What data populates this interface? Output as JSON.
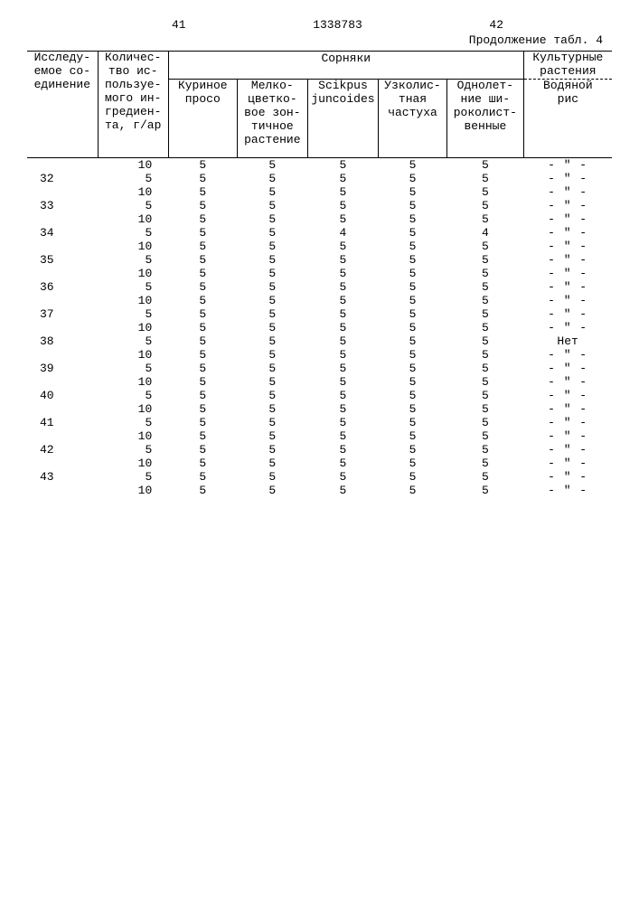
{
  "header": {
    "page_left": "41",
    "doc_number": "1338783",
    "page_right": "42",
    "continuation": "Продолжение табл. 4"
  },
  "columns": {
    "compound": "Исследу-\nемое со-\nединение",
    "amount": "Количес-\nтво ис-\nпользуе-\nмого ин-\nгредиен-\nта, г/ар",
    "weeds_group": "Сорняки",
    "weeds": {
      "c1": "Куриное\nпросо",
      "c2": "Мелко-\nцветко-\nвое зон-\nтичное\nрастение",
      "c3": "Scikpus\njuncoides",
      "c4": "Узколис-\nтная\nчастуха",
      "c5": "Однолет-\nние ши-\nроколист-\nвенные"
    },
    "crops_top": "Культурные\nрастения",
    "crops_bottom": "Водяной\nрис"
  },
  "ditto": "- \" -",
  "net": "Нет",
  "rows": [
    {
      "id": "",
      "amt": "10",
      "v": [
        "5",
        "5",
        "5",
        "5",
        "5"
      ],
      "crop": "ditto"
    },
    {
      "id": "32",
      "amt": "5",
      "v": [
        "5",
        "5",
        "5",
        "5",
        "5"
      ],
      "crop": "ditto"
    },
    {
      "id": "",
      "amt": "10",
      "v": [
        "5",
        "5",
        "5",
        "5",
        "5"
      ],
      "crop": "ditto"
    },
    {
      "id": "33",
      "amt": "5",
      "v": [
        "5",
        "5",
        "5",
        "5",
        "5"
      ],
      "crop": "ditto"
    },
    {
      "id": "",
      "amt": "10",
      "v": [
        "5",
        "5",
        "5",
        "5",
        "5"
      ],
      "crop": "ditto"
    },
    {
      "id": "34",
      "amt": "5",
      "v": [
        "5",
        "5",
        "4",
        "5",
        "4"
      ],
      "crop": "ditto"
    },
    {
      "id": "",
      "amt": "10",
      "v": [
        "5",
        "5",
        "5",
        "5",
        "5"
      ],
      "crop": "ditto"
    },
    {
      "id": "35",
      "amt": "5",
      "v": [
        "5",
        "5",
        "5",
        "5",
        "5"
      ],
      "crop": "ditto"
    },
    {
      "id": "",
      "amt": "10",
      "v": [
        "5",
        "5",
        "5",
        "5",
        "5"
      ],
      "crop": "ditto"
    },
    {
      "id": "36",
      "amt": "5",
      "v": [
        "5",
        "5",
        "5",
        "5",
        "5"
      ],
      "crop": "ditto"
    },
    {
      "id": "",
      "amt": "10",
      "v": [
        "5",
        "5",
        "5",
        "5",
        "5"
      ],
      "crop": "ditto"
    },
    {
      "id": "37",
      "amt": "5",
      "v": [
        "5",
        "5",
        "5",
        "5",
        "5"
      ],
      "crop": "ditto"
    },
    {
      "id": "",
      "amt": "10",
      "v": [
        "5",
        "5",
        "5",
        "5",
        "5"
      ],
      "crop": "ditto"
    },
    {
      "id": "38",
      "amt": "5",
      "v": [
        "5",
        "5",
        "5",
        "5",
        "5"
      ],
      "crop": "net"
    },
    {
      "id": "",
      "amt": "10",
      "v": [
        "5",
        "5",
        "5",
        "5",
        "5"
      ],
      "crop": "ditto"
    },
    {
      "id": "39",
      "amt": "5",
      "v": [
        "5",
        "5",
        "5",
        "5",
        "5"
      ],
      "crop": "ditto"
    },
    {
      "id": "",
      "amt": "10",
      "v": [
        "5",
        "5",
        "5",
        "5",
        "5"
      ],
      "crop": "ditto"
    },
    {
      "id": "40",
      "amt": "5",
      "v": [
        "5",
        "5",
        "5",
        "5",
        "5"
      ],
      "crop": "ditto"
    },
    {
      "id": "",
      "amt": "10",
      "v": [
        "5",
        "5",
        "5",
        "5",
        "5"
      ],
      "crop": "ditto"
    },
    {
      "id": "41",
      "amt": "5",
      "v": [
        "5",
        "5",
        "5",
        "5",
        "5"
      ],
      "crop": "ditto"
    },
    {
      "id": "",
      "amt": "10",
      "v": [
        "5",
        "5",
        "5",
        "5",
        "5"
      ],
      "crop": "ditto"
    },
    {
      "id": "42",
      "amt": "5",
      "v": [
        "5",
        "5",
        "5",
        "5",
        "5"
      ],
      "crop": "ditto"
    },
    {
      "id": "",
      "amt": "10",
      "v": [
        "5",
        "5",
        "5",
        "5",
        "5"
      ],
      "crop": "ditto"
    },
    {
      "id": "43",
      "amt": "5",
      "v": [
        "5",
        "5",
        "5",
        "5",
        "5"
      ],
      "crop": "ditto"
    },
    {
      "id": "",
      "amt": "10",
      "v": [
        "5",
        "5",
        "5",
        "5",
        "5"
      ],
      "crop": "ditto"
    }
  ]
}
